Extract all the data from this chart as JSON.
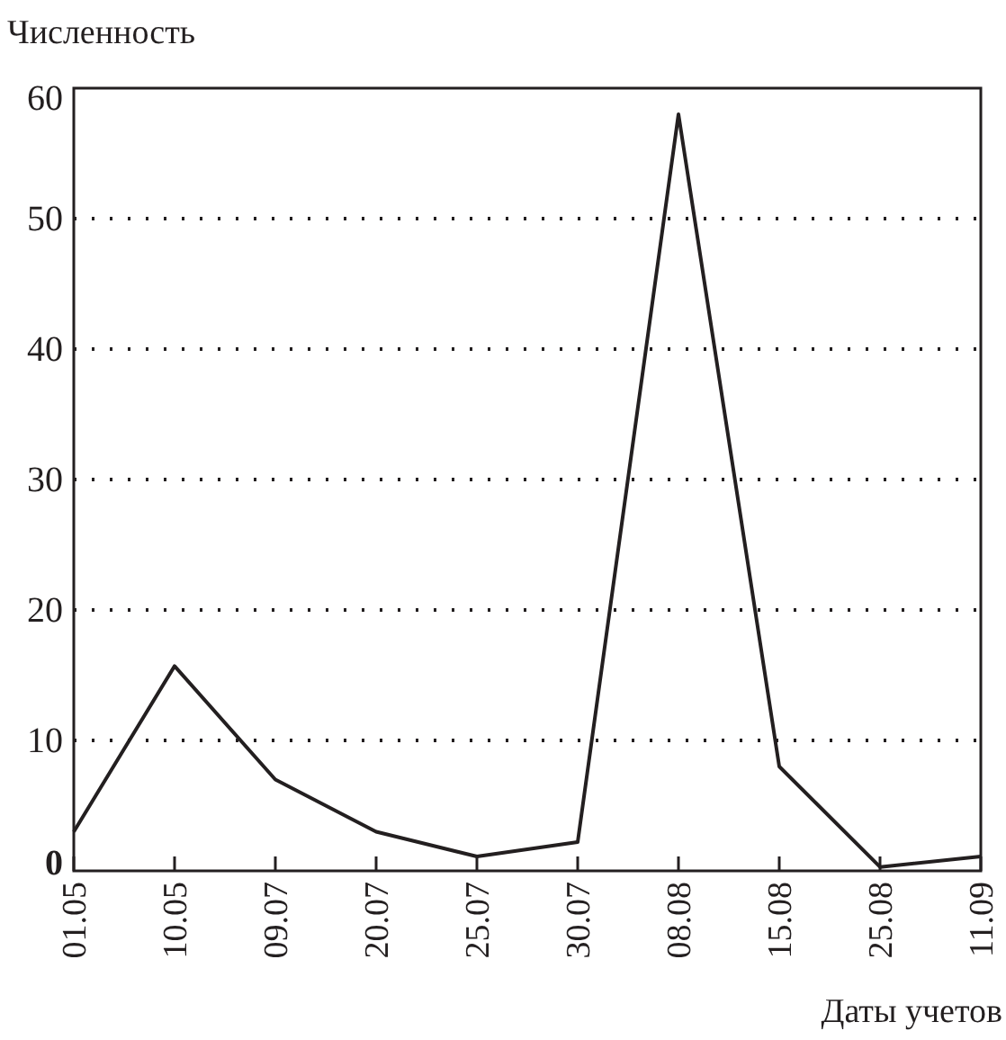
{
  "chart_data": {
    "type": "line",
    "ylabel": "Численность",
    "xlabel": "Даты учетов",
    "categories": [
      "01.05",
      "10.05",
      "09.07",
      "20.07",
      "25.07",
      "30.07",
      "08.08",
      "15.08",
      "25.08",
      "11.09"
    ],
    "series": [
      {
        "color": "#231f20",
        "values": [
          3,
          15.7,
          7,
          3,
          1.1,
          2.2,
          58,
          8,
          0.3,
          1.1
        ]
      }
    ],
    "ylim": [
      0,
      60
    ],
    "yticks": [
      0,
      10,
      20,
      30,
      40,
      50,
      60
    ],
    "grid": "y",
    "marker": "none",
    "line_style": "solid"
  }
}
